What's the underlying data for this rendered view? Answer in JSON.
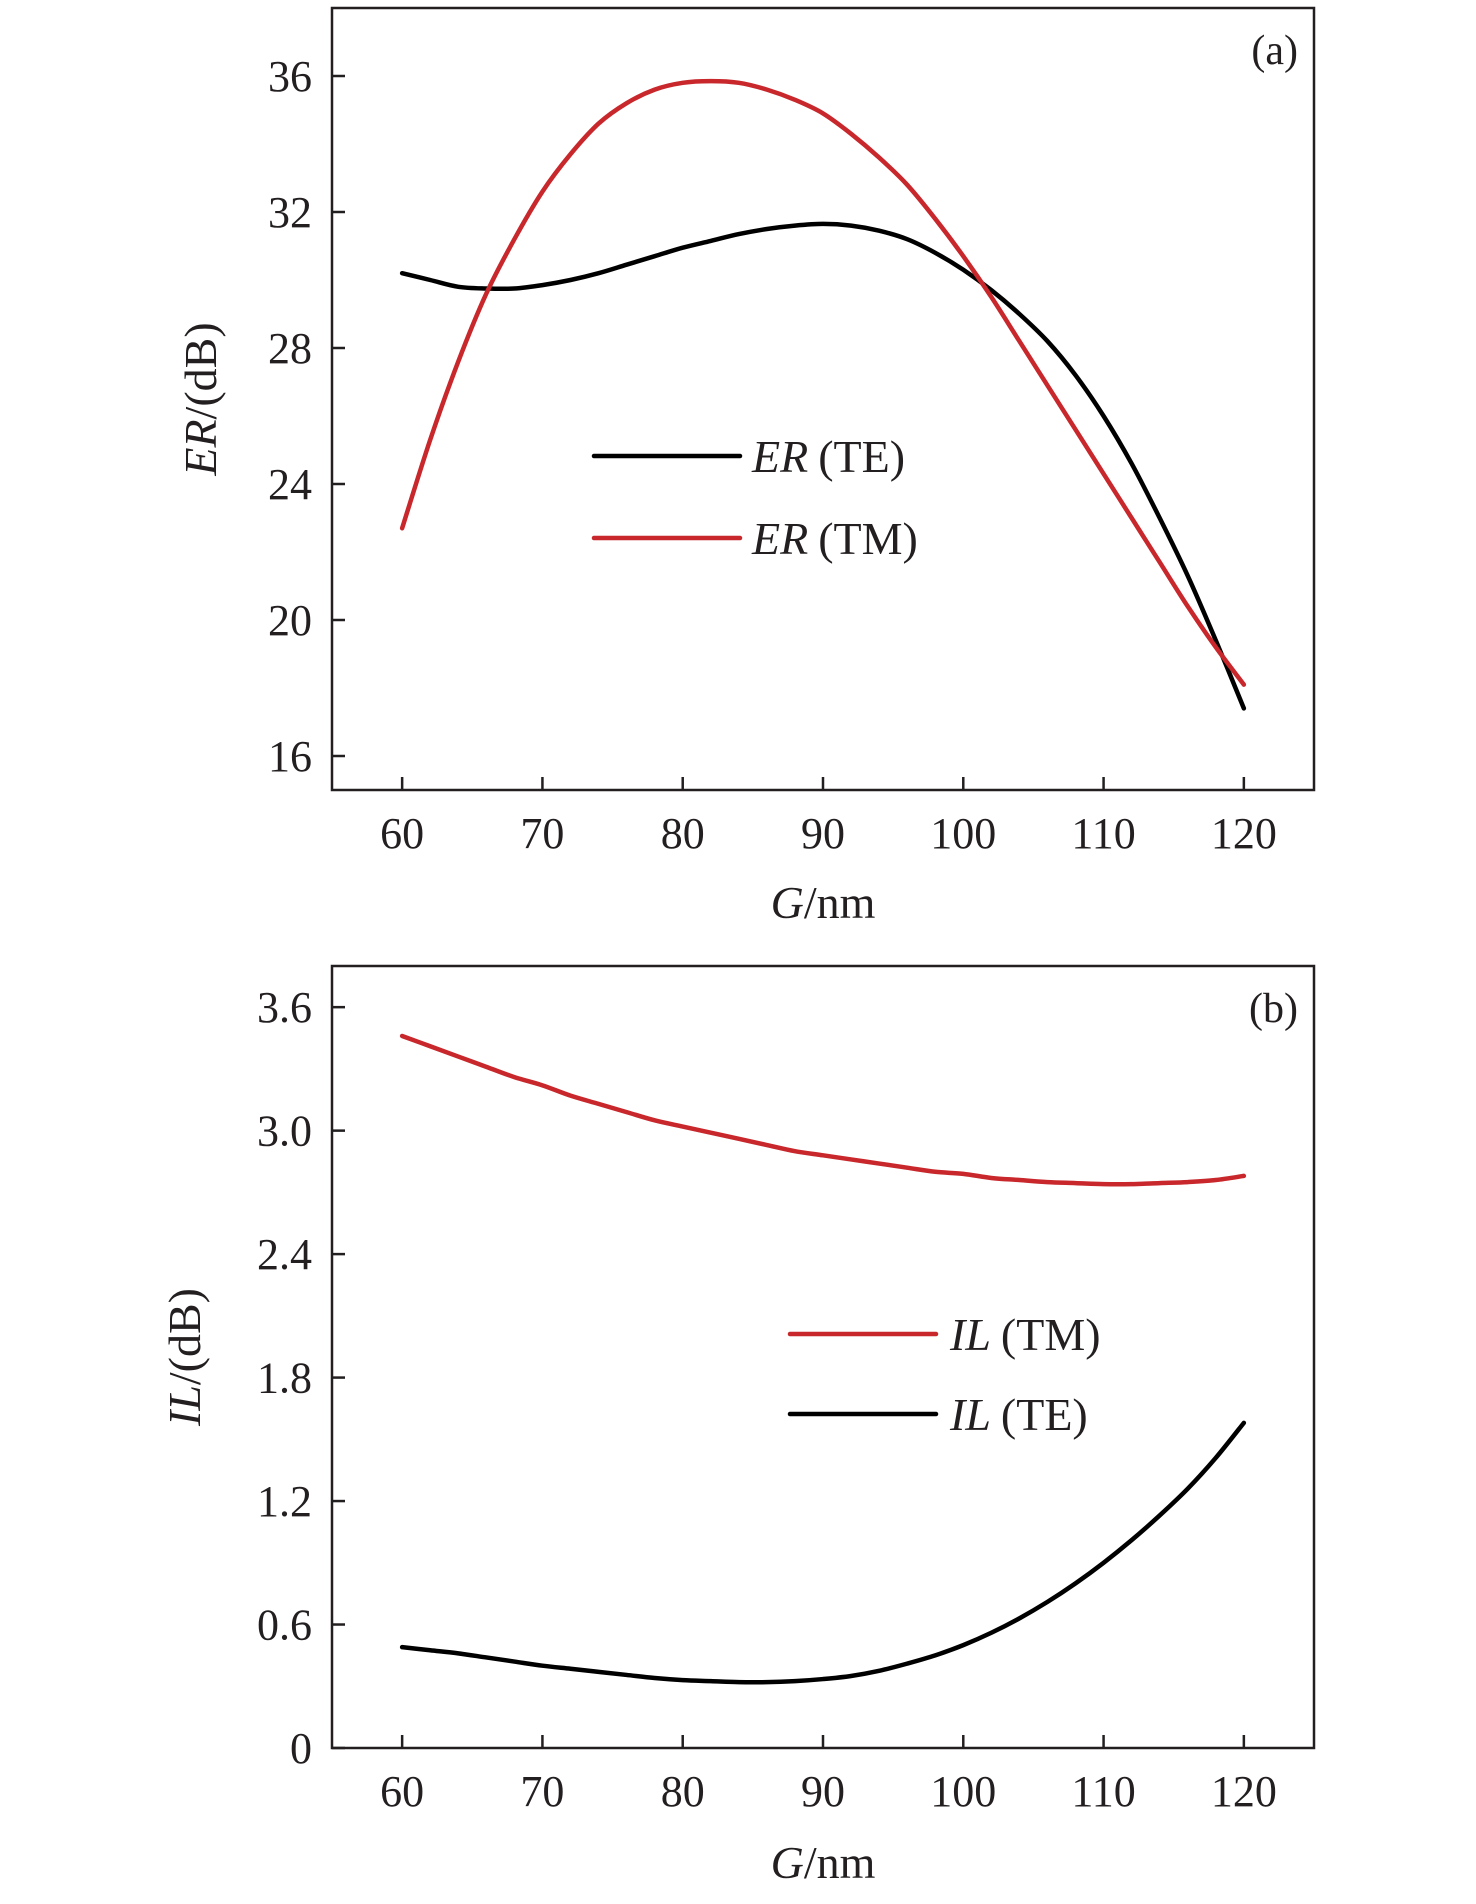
{
  "chart_data": [
    {
      "type": "line",
      "panel_label": "(a)",
      "xlabel_var": "G",
      "xlabel_unit": "/nm",
      "ylabel_var": "ER",
      "ylabel_unit": "/(dB)",
      "xlim": [
        55,
        125
      ],
      "ylim": [
        15,
        38
      ],
      "xticks": [
        60,
        70,
        80,
        90,
        100,
        110,
        120
      ],
      "yticks": [
        16,
        20,
        24,
        28,
        32,
        36
      ],
      "ytick_labels": [
        "16",
        "20",
        "24",
        "28",
        "32",
        "36"
      ],
      "legend_position": "center-left",
      "series": [
        {
          "name": "ER (TE)",
          "legend_var": "ER",
          "legend_mode": "(TE)",
          "color": "#000000",
          "x": [
            60,
            62,
            64,
            66,
            68,
            70,
            72,
            74,
            76,
            78,
            80,
            82,
            84,
            86,
            88,
            90,
            92,
            94,
            96,
            98,
            100,
            102,
            104,
            106,
            108,
            110,
            112,
            114,
            116,
            118,
            120
          ],
          "y": [
            30.2,
            30.0,
            29.8,
            29.75,
            29.75,
            29.85,
            30.0,
            30.2,
            30.45,
            30.7,
            30.95,
            31.15,
            31.35,
            31.5,
            31.6,
            31.65,
            31.6,
            31.45,
            31.2,
            30.8,
            30.3,
            29.7,
            29.0,
            28.2,
            27.2,
            26.0,
            24.6,
            23.0,
            21.3,
            19.4,
            17.4
          ]
        },
        {
          "name": "ER (TM)",
          "legend_var": "ER",
          "legend_mode": "(TM)",
          "color": "#c8272b",
          "x": [
            60,
            62,
            64,
            66,
            68,
            70,
            72,
            74,
            76,
            78,
            80,
            82,
            84,
            86,
            88,
            90,
            92,
            94,
            96,
            98,
            100,
            102,
            104,
            106,
            108,
            110,
            112,
            114,
            116,
            118,
            120
          ],
          "y": [
            22.7,
            25.3,
            27.6,
            29.6,
            31.2,
            32.6,
            33.7,
            34.6,
            35.2,
            35.6,
            35.8,
            35.85,
            35.8,
            35.6,
            35.3,
            34.9,
            34.3,
            33.6,
            32.8,
            31.8,
            30.7,
            29.5,
            28.2,
            26.9,
            25.6,
            24.3,
            23.0,
            21.7,
            20.4,
            19.2,
            18.1
          ]
        }
      ]
    },
    {
      "type": "line",
      "panel_label": "(b)",
      "xlabel_var": "G",
      "xlabel_unit": "/nm",
      "ylabel_var": "IL",
      "ylabel_unit": "/(dB)",
      "xlim": [
        55,
        125
      ],
      "ylim": [
        0,
        3.8
      ],
      "xticks": [
        60,
        70,
        80,
        90,
        100,
        110,
        120
      ],
      "yticks": [
        0,
        0.6,
        1.2,
        1.8,
        2.4,
        3.0,
        3.6
      ],
      "ytick_labels": [
        "0",
        "0.6",
        "1.2",
        "1.8",
        "2.4",
        "3.0",
        "3.6"
      ],
      "legend_position": "center-right",
      "series": [
        {
          "name": "IL (TM)",
          "legend_var": "IL",
          "legend_mode": "(TM)",
          "color": "#c8272b",
          "x": [
            60,
            62,
            64,
            66,
            68,
            70,
            72,
            74,
            76,
            78,
            80,
            82,
            84,
            86,
            88,
            90,
            92,
            94,
            96,
            98,
            100,
            102,
            104,
            106,
            108,
            110,
            112,
            114,
            116,
            118,
            120
          ],
          "y": [
            3.46,
            3.41,
            3.36,
            3.31,
            3.26,
            3.22,
            3.17,
            3.13,
            3.09,
            3.05,
            3.02,
            2.99,
            2.96,
            2.93,
            2.9,
            2.88,
            2.86,
            2.84,
            2.82,
            2.8,
            2.79,
            2.77,
            2.76,
            2.75,
            2.745,
            2.74,
            2.74,
            2.745,
            2.75,
            2.76,
            2.78
          ]
        },
        {
          "name": "IL (TE)",
          "legend_var": "IL",
          "legend_mode": "(TE)",
          "color": "#000000",
          "x": [
            60,
            62,
            64,
            66,
            68,
            70,
            72,
            74,
            76,
            78,
            80,
            82,
            84,
            86,
            88,
            90,
            92,
            94,
            96,
            98,
            100,
            102,
            104,
            106,
            108,
            110,
            112,
            114,
            116,
            118,
            120
          ],
          "y": [
            0.49,
            0.475,
            0.46,
            0.44,
            0.42,
            0.4,
            0.385,
            0.37,
            0.355,
            0.34,
            0.33,
            0.325,
            0.32,
            0.32,
            0.325,
            0.335,
            0.35,
            0.375,
            0.41,
            0.45,
            0.5,
            0.56,
            0.63,
            0.71,
            0.8,
            0.9,
            1.01,
            1.13,
            1.26,
            1.41,
            1.58
          ]
        }
      ]
    }
  ]
}
